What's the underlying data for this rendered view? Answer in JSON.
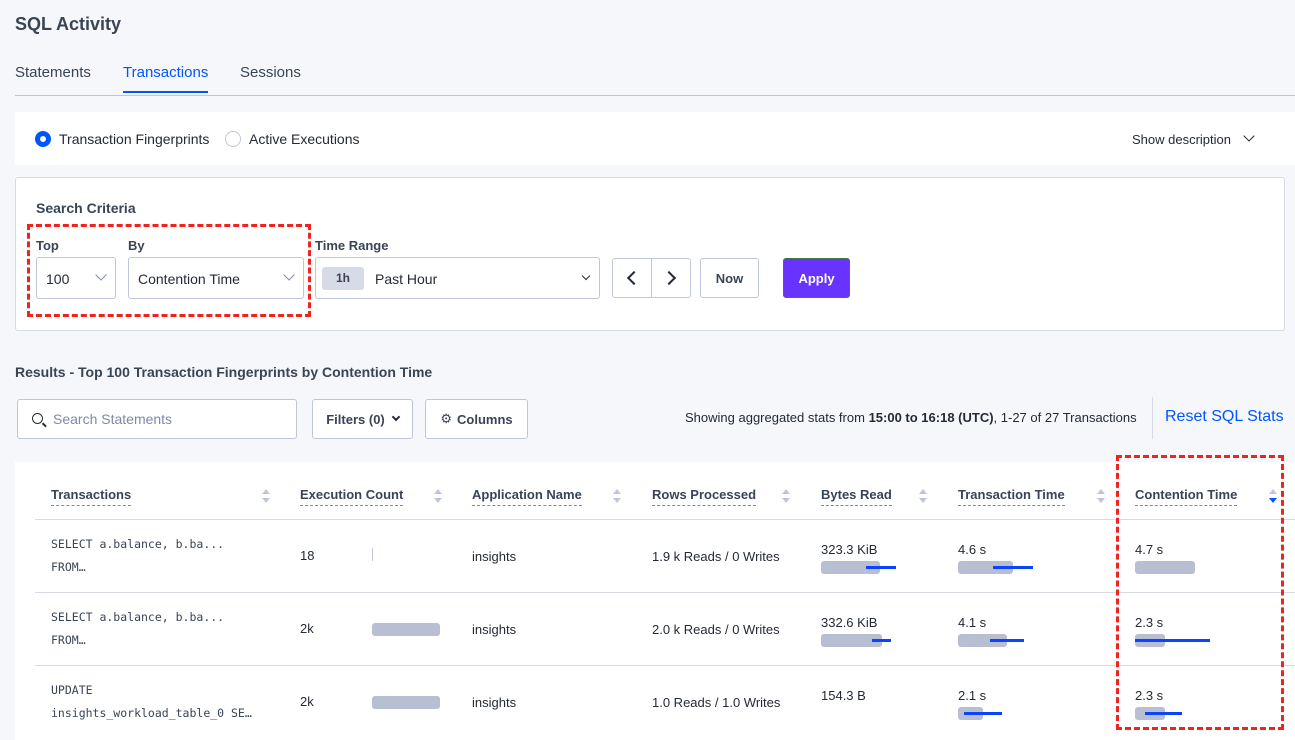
{
  "title": "SQL Activity",
  "tabs": [
    {
      "label": "Statements"
    },
    {
      "label": "Transactions",
      "active": true
    },
    {
      "label": "Sessions"
    }
  ],
  "view": {
    "options": [
      "Transaction Fingerprints",
      "Active Executions"
    ],
    "selected": "Transaction Fingerprints",
    "show_description": "Show description"
  },
  "search": {
    "heading": "Search Criteria",
    "top_label": "Top",
    "top_value": "100",
    "by_label": "By",
    "by_value": "Contention Time",
    "time_label": "Time Range",
    "time_badge": "1h",
    "time_value": "Past Hour",
    "now": "Now",
    "apply": "Apply"
  },
  "results": {
    "heading": "Results - Top 100 Transaction Fingerprints by Contention Time",
    "search_placeholder": "Search Statements",
    "filters": "Filters (0)",
    "columns": "Columns",
    "summary_prefix": "Showing aggregated stats from ",
    "summary_range": "15:00 to 16:18 (UTC)",
    "summary_suffix": ", 1-27 of 27 Transactions",
    "reset": "Reset SQL Stats"
  },
  "colors": {
    "accent": "#0055ff",
    "apply": "#6933ff",
    "highlight": "#f0241e"
  },
  "table": {
    "headers": [
      "Transactions",
      "Execution Count",
      "Application Name",
      "Rows Processed",
      "Bytes Read",
      "Transaction Time",
      "Contention Time"
    ],
    "sorted_column": "Contention Time",
    "sort_direction": "descending",
    "rows": [
      {
        "txn": [
          "SELECT a.balance, b.ba...",
          "FROM…"
        ],
        "exec": "18",
        "app": "insights",
        "rows": "1.9 k Reads / 0 Writes",
        "bytes": "323.3 KiB",
        "txn_time": "4.6 s",
        "cont": "4.7 s",
        "bars": {
          "exec": [
            0.01,
            null,
            null
          ],
          "bytes": [
            0.74,
            0.56,
            0.94
          ],
          "txn_time": [
            0.69,
            0.44,
            0.94
          ],
          "cont": [
            0.75,
            null,
            null
          ]
        }
      },
      {
        "txn": [
          "SELECT a.balance, b.ba...",
          "FROM…"
        ],
        "exec": "2k",
        "app": "insights",
        "rows": "2.0 k Reads / 0 Writes",
        "bytes": "332.6 KiB",
        "txn_time": "4.1 s",
        "cont": "2.3 s",
        "bars": {
          "exec": [
            0.85,
            null,
            null
          ],
          "bytes": [
            0.76,
            0.64,
            0.88
          ],
          "txn_time": [
            0.61,
            0.4,
            0.83
          ],
          "cont": [
            0.37,
            0,
            0.94
          ]
        }
      },
      {
        "txn": [
          "UPDATE",
          "insights_workload_table_0 SE…"
        ],
        "exec": "2k",
        "app": "insights",
        "rows": "1.0 Reads / 1.0 Writes",
        "bytes": "154.3 B",
        "txn_time": "2.1 s",
        "cont": "2.3 s",
        "bars": {
          "exec": [
            0.85,
            null,
            null
          ],
          "bytes": null,
          "txn_time": [
            0.31,
            0.08,
            0.55
          ],
          "cont": [
            0.37,
            0.12,
            0.59
          ]
        }
      }
    ]
  }
}
